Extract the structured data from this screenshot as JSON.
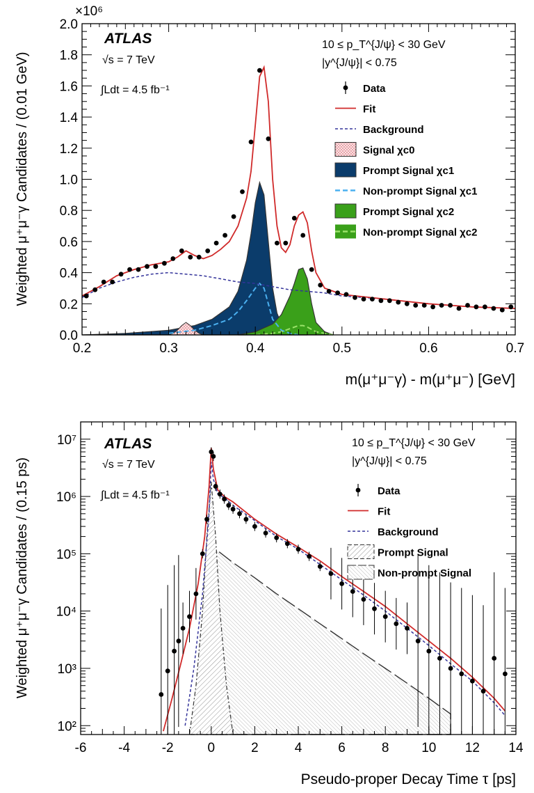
{
  "chart_data": [
    {
      "type": "line",
      "id": "mass",
      "xlabel_html": "m(μ⁺μ⁻γ) - m(μ⁺μ⁻) [GeV]",
      "ylabel": "Weighted μ⁺μ⁻γ Candidates / (0.01 GeV)",
      "y_scale_label": "×10⁶",
      "xlim": [
        0.2,
        0.7
      ],
      "ylim": [
        0,
        2.0
      ],
      "xticks": [
        0.2,
        0.3,
        0.4,
        0.5,
        0.6,
        0.7
      ],
      "xtick_labels": [
        "0.2",
        "0.3",
        "0.4",
        "0.5",
        "0.6",
        "0.7"
      ],
      "yticks": [
        0,
        0.2,
        0.4,
        0.6,
        0.8,
        1.0,
        1.2,
        1.4,
        1.6,
        1.8,
        2.0
      ],
      "ytick_labels": [
        "0.0",
        "0.2",
        "0.4",
        "0.6",
        "0.8",
        "1.0",
        "1.2",
        "1.4",
        "1.6",
        "1.8",
        "2.0"
      ],
      "atlas": "ATLAS",
      "energy": "√s = 7 TeV",
      "lumi": "∫Ldt = 4.5 fb⁻¹",
      "cut1": "10 ≤ p_T^{J/ψ} < 30 GeV",
      "cut2": "|y^{J/ψ}| < 0.75",
      "legend": [
        {
          "label": "Data",
          "style": "data"
        },
        {
          "label": "Fit",
          "style": "fit"
        },
        {
          "label": "Background",
          "style": "bkg"
        },
        {
          "label": "Signal χc0",
          "style": "chic0"
        },
        {
          "label": "Prompt Signal χc1",
          "style": "p1"
        },
        {
          "label": "Non-prompt Signal χc1",
          "style": "np1"
        },
        {
          "label": "Prompt Signal χc2",
          "style": "p2"
        },
        {
          "label": "Non-prompt Signal χc2",
          "style": "np2"
        }
      ],
      "series": [
        {
          "name": "Data",
          "x": [
            0.205,
            0.215,
            0.225,
            0.235,
            0.245,
            0.255,
            0.265,
            0.275,
            0.285,
            0.295,
            0.305,
            0.315,
            0.325,
            0.335,
            0.345,
            0.355,
            0.365,
            0.375,
            0.385,
            0.395,
            0.405,
            0.415,
            0.425,
            0.435,
            0.445,
            0.455,
            0.465,
            0.475,
            0.485,
            0.495,
            0.505,
            0.515,
            0.525,
            0.535,
            0.545,
            0.555,
            0.565,
            0.575,
            0.585,
            0.595,
            0.605,
            0.615,
            0.625,
            0.635,
            0.645,
            0.655,
            0.665,
            0.675,
            0.685,
            0.695
          ],
          "y": [
            0.25,
            0.29,
            0.34,
            0.34,
            0.39,
            0.42,
            0.42,
            0.44,
            0.44,
            0.46,
            0.49,
            0.54,
            0.5,
            0.5,
            0.54,
            0.59,
            0.64,
            0.76,
            0.92,
            1.24,
            1.7,
            1.26,
            0.59,
            0.59,
            0.75,
            0.64,
            0.42,
            0.32,
            0.28,
            0.27,
            0.26,
            0.24,
            0.23,
            0.23,
            0.22,
            0.22,
            0.21,
            0.2,
            0.19,
            0.19,
            0.18,
            0.19,
            0.19,
            0.17,
            0.19,
            0.18,
            0.18,
            0.17,
            0.16,
            0.18
          ]
        },
        {
          "name": "Fit",
          "x": [
            0.2,
            0.22,
            0.24,
            0.26,
            0.28,
            0.3,
            0.31,
            0.32,
            0.33,
            0.34,
            0.35,
            0.36,
            0.37,
            0.38,
            0.39,
            0.395,
            0.4,
            0.405,
            0.41,
            0.415,
            0.42,
            0.425,
            0.43,
            0.435,
            0.44,
            0.445,
            0.45,
            0.455,
            0.46,
            0.465,
            0.47,
            0.48,
            0.5,
            0.55,
            0.6,
            0.65,
            0.7
          ],
          "y": [
            0.25,
            0.31,
            0.38,
            0.42,
            0.45,
            0.47,
            0.5,
            0.54,
            0.51,
            0.49,
            0.51,
            0.55,
            0.6,
            0.7,
            0.88,
            1.05,
            1.35,
            1.66,
            1.72,
            1.5,
            1.0,
            0.7,
            0.56,
            0.53,
            0.58,
            0.7,
            0.77,
            0.79,
            0.72,
            0.54,
            0.4,
            0.3,
            0.26,
            0.23,
            0.2,
            0.18,
            0.17
          ]
        },
        {
          "name": "Background",
          "x": [
            0.2,
            0.22,
            0.24,
            0.26,
            0.28,
            0.3,
            0.32,
            0.34,
            0.36,
            0.38,
            0.4,
            0.42,
            0.44,
            0.46,
            0.48,
            0.5,
            0.55,
            0.6,
            0.65,
            0.7
          ],
          "y": [
            0.24,
            0.3,
            0.34,
            0.37,
            0.39,
            0.4,
            0.39,
            0.38,
            0.36,
            0.34,
            0.33,
            0.31,
            0.29,
            0.28,
            0.27,
            0.25,
            0.23,
            0.2,
            0.18,
            0.17
          ]
        },
        {
          "name": "Signal χc0",
          "x": [
            0.3,
            0.305,
            0.31,
            0.315,
            0.32,
            0.325,
            0.33,
            0.335,
            0.34
          ],
          "y": [
            0.0,
            0.01,
            0.03,
            0.06,
            0.08,
            0.06,
            0.03,
            0.01,
            0.0
          ]
        },
        {
          "name": "Prompt Signal χc1",
          "x": [
            0.2,
            0.25,
            0.3,
            0.33,
            0.35,
            0.37,
            0.38,
            0.39,
            0.395,
            0.4,
            0.405,
            0.41,
            0.415,
            0.42,
            0.425,
            0.43,
            0.44,
            0.45,
            0.46
          ],
          "y": [
            0.0,
            0.01,
            0.03,
            0.06,
            0.1,
            0.18,
            0.28,
            0.48,
            0.65,
            0.85,
            0.98,
            0.9,
            0.6,
            0.3,
            0.14,
            0.07,
            0.03,
            0.01,
            0.0
          ]
        },
        {
          "name": "Non-prompt Signal χc1",
          "x": [
            0.3,
            0.33,
            0.35,
            0.37,
            0.38,
            0.39,
            0.4,
            0.405,
            0.41,
            0.415,
            0.42,
            0.43,
            0.44,
            0.45
          ],
          "y": [
            0.01,
            0.03,
            0.06,
            0.1,
            0.15,
            0.22,
            0.3,
            0.33,
            0.3,
            0.2,
            0.1,
            0.03,
            0.01,
            0.0
          ]
        },
        {
          "name": "Prompt Signal χc2",
          "x": [
            0.38,
            0.4,
            0.42,
            0.43,
            0.44,
            0.445,
            0.45,
            0.455,
            0.46,
            0.465,
            0.47,
            0.48,
            0.49
          ],
          "y": [
            0.0,
            0.02,
            0.07,
            0.13,
            0.25,
            0.33,
            0.42,
            0.43,
            0.36,
            0.2,
            0.08,
            0.02,
            0.0
          ]
        },
        {
          "name": "Non-prompt Signal χc2",
          "x": [
            0.4,
            0.42,
            0.43,
            0.44,
            0.45,
            0.455,
            0.46,
            0.47,
            0.48,
            0.49
          ],
          "y": [
            0.0,
            0.01,
            0.02,
            0.04,
            0.06,
            0.06,
            0.05,
            0.02,
            0.01,
            0.0
          ]
        }
      ]
    },
    {
      "type": "line",
      "id": "tau",
      "xlabel": "Pseudo-proper Decay Time τ [ps]",
      "ylabel": "Weighted μ⁺μ⁻γ Candidates / (0.15 ps)",
      "xlim": [
        -6,
        14
      ],
      "ylim": [
        70,
        20000000
      ],
      "yscale": "log",
      "xticks": [
        -6,
        -4,
        -2,
        0,
        2,
        4,
        6,
        8,
        10,
        12,
        14
      ],
      "xtick_labels": [
        "-6",
        "-4",
        "-2",
        "0",
        "2",
        "4",
        "6",
        "8",
        "10",
        "12",
        "14"
      ],
      "yticks": [
        100,
        1000,
        10000,
        100000,
        1000000,
        10000000
      ],
      "ytick_labels": [
        "10²",
        "10³",
        "10⁴",
        "10⁵",
        "10⁶",
        "10⁷"
      ],
      "atlas": "ATLAS",
      "energy": "√s = 7 TeV",
      "lumi": "∫Ldt = 4.5 fb⁻¹",
      "cut1": "10 ≤ p_T^{J/ψ} < 30 GeV",
      "cut2": "|y^{J/ψ}| < 0.75",
      "legend": [
        {
          "label": "Data",
          "style": "data"
        },
        {
          "label": "Fit",
          "style": "fit"
        },
        {
          "label": "Background",
          "style": "bkg"
        },
        {
          "label": "Prompt Signal",
          "style": "prompt"
        },
        {
          "label": "Non-prompt Signal",
          "style": "nonprompt"
        }
      ],
      "series": [
        {
          "name": "Data",
          "x": [
            -2.3,
            -2.0,
            -1.7,
            -1.5,
            -1.3,
            -1.0,
            -0.7,
            -0.4,
            -0.2,
            0.0,
            0.1,
            0.2,
            0.4,
            0.6,
            0.8,
            1.0,
            1.3,
            1.6,
            2.0,
            2.5,
            3.0,
            3.5,
            4.0,
            4.5,
            5.0,
            5.5,
            6.0,
            6.5,
            7.0,
            7.5,
            8.0,
            8.5,
            9.0,
            9.5,
            10.0,
            10.5,
            11.0,
            11.5,
            12.0,
            12.5,
            13.0,
            13.5
          ],
          "y": [
            350,
            900,
            2000,
            3000,
            5000,
            8000,
            20000,
            100000,
            400000,
            6000000,
            5000000,
            1500000,
            1100000,
            900000,
            700000,
            600000,
            500000,
            400000,
            300000,
            230000,
            190000,
            150000,
            120000,
            90000,
            60000,
            45000,
            30000,
            22000,
            16000,
            11000,
            8000,
            6000,
            5000,
            3000,
            2000,
            1500,
            1000,
            800,
            600,
            400,
            1500,
            800
          ]
        },
        {
          "name": "Fit",
          "x": [
            -2.2,
            -1.8,
            -1.4,
            -1.0,
            -0.6,
            -0.3,
            -0.1,
            0.0,
            0.1,
            0.3,
            0.6,
            1.0,
            2.0,
            3.0,
            4.0,
            5.0,
            6.0,
            7.0,
            8.0,
            9.0,
            10.0,
            11.0,
            12.0,
            13.0,
            13.5
          ],
          "y": [
            80,
            300,
            1200,
            5000,
            30000,
            200000,
            1500000,
            7000000,
            3000000,
            1300000,
            1000000,
            800000,
            400000,
            220000,
            130000,
            75000,
            40000,
            22000,
            12000,
            6000,
            3000,
            1500,
            700,
            300,
            180
          ]
        },
        {
          "name": "Background",
          "x": [
            -1.2,
            -0.8,
            -0.4,
            -0.1,
            0.0,
            0.1,
            0.3,
            0.6,
            1.0,
            2.0,
            3.0,
            4.0,
            5.0,
            6.0,
            7.0,
            8.0,
            9.0,
            10.0,
            11.0,
            12.0,
            13.0,
            13.5
          ],
          "y": [
            100,
            1000,
            20000,
            500000,
            4000000,
            2000000,
            1100000,
            950000,
            700000,
            380000,
            200000,
            120000,
            65000,
            35000,
            19000,
            10000,
            5000,
            2500,
            1200,
            600,
            250,
            150
          ]
        },
        {
          "name": "Prompt Signal",
          "x": [
            -1.0,
            -0.7,
            -0.4,
            -0.2,
            0.0,
            0.2,
            0.4,
            0.7,
            1.0
          ],
          "y": [
            70,
            500,
            10000,
            200000,
            1800000,
            200000,
            10000,
            500,
            70
          ]
        },
        {
          "name": "Non-prompt Signal",
          "x": [
            -0.3,
            -0.1,
            0.0,
            0.1,
            0.2,
            1.0,
            2.0,
            3.0,
            4.0,
            5.0,
            6.0,
            7.0,
            8.0,
            9.0,
            10.0,
            11.0
          ],
          "y": [
            70,
            5000,
            60000,
            130000,
            120000,
            70000,
            38000,
            20000,
            11000,
            6000,
            3300,
            1800,
            1000,
            550,
            300,
            160
          ]
        }
      ]
    }
  ]
}
